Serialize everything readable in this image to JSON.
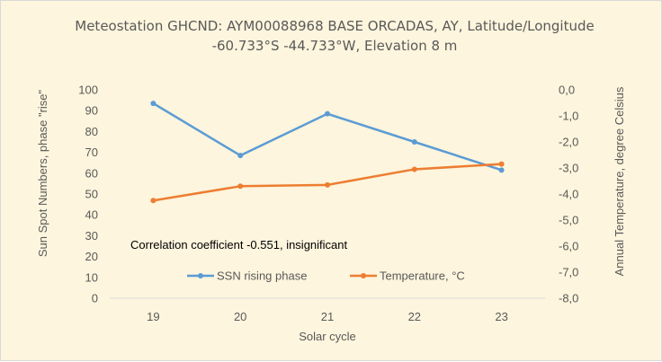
{
  "chart_data": {
    "type": "line",
    "title_line1": "Meteostation GHCND: AYM00088968 BASE ORCADAS, AY, Latitude/Longitude",
    "title_line2": "-60.733°S -44.733°W, Elevation 8 m",
    "xlabel": "Solar cycle",
    "ylabel_left": "Sun Spot Numbers, phase \"rise\"",
    "ylabel_right": "Annual Temperature, degree Celsius",
    "categories": [
      "19",
      "20",
      "21",
      "22",
      "23"
    ],
    "y_left": {
      "min": 0,
      "max": 100,
      "step": 10,
      "ticks": [
        "0",
        "10",
        "20",
        "30",
        "40",
        "50",
        "60",
        "70",
        "80",
        "90",
        "100"
      ]
    },
    "y_right": {
      "min": -8,
      "max": 0,
      "step": 1,
      "ticks": [
        "-8,0",
        "-7,0",
        "-6,0",
        "-5,0",
        "-4,0",
        "-3,0",
        "-2,0",
        "-1,0",
        "0,0"
      ]
    },
    "grid": false,
    "legend_position": "bottom",
    "annotation": "Correlation coefficient -0.551, insignificant",
    "series": [
      {
        "name": "SSN rising phase",
        "axis": "left",
        "color": "#5b9bd5",
        "values": [
          93.5,
          68.5,
          88.5,
          75,
          61.5
        ]
      },
      {
        "name": "Temperature, °C",
        "axis": "right",
        "color": "#ed7d31",
        "values": [
          -4.25,
          -3.7,
          -3.65,
          -3.05,
          -2.85
        ]
      }
    ]
  }
}
